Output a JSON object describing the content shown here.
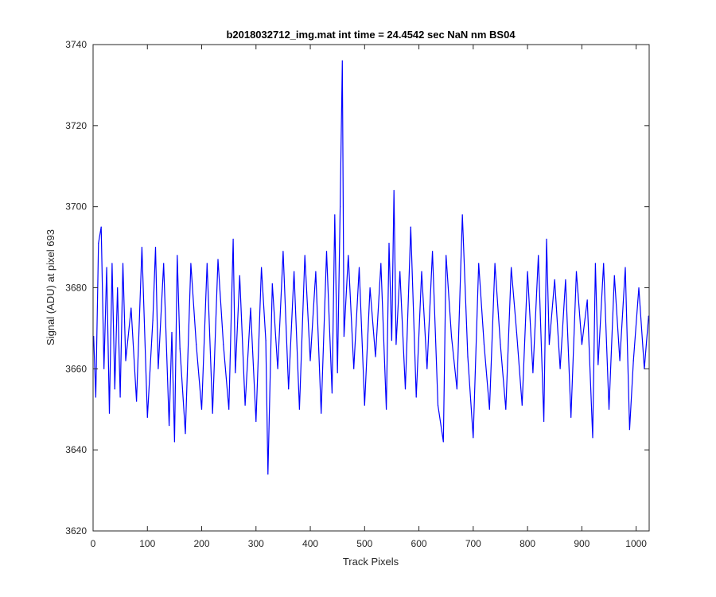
{
  "chart_data": {
    "type": "line",
    "title": "b2018032712_img.mat int time = 24.4542 sec  NaN nm BS04",
    "xlabel": "Track Pixels",
    "ylabel": "Signal (ADU) at pixel 693",
    "xlim": [
      0,
      1024
    ],
    "ylim": [
      3620,
      3740
    ],
    "xticks": [
      0,
      100,
      200,
      300,
      400,
      500,
      600,
      700,
      800,
      900,
      1000
    ],
    "yticks": [
      3620,
      3640,
      3660,
      3680,
      3700,
      3720,
      3740
    ],
    "xtick_labels": [
      "0",
      "100",
      "200",
      "300",
      "400",
      "500",
      "600",
      "700",
      "800",
      "900",
      "1000"
    ],
    "ytick_labels": [
      "3620",
      "3640",
      "3660",
      "3680",
      "3700",
      "3720",
      "3740"
    ],
    "grid": false,
    "series": [
      {
        "color": "#0000ff",
        "x": [
          1,
          5,
          10,
          15,
          20,
          25,
          30,
          35,
          40,
          45,
          50,
          55,
          60,
          70,
          80,
          90,
          100,
          110,
          115,
          120,
          130,
          140,
          145,
          150,
          155,
          160,
          170,
          180,
          190,
          200,
          210,
          220,
          230,
          240,
          250,
          258,
          262,
          270,
          280,
          290,
          300,
          310,
          318,
          322,
          330,
          340,
          350,
          360,
          370,
          380,
          390,
          400,
          410,
          420,
          430,
          440,
          445,
          450,
          455,
          459,
          462,
          470,
          480,
          490,
          500,
          510,
          520,
          530,
          540,
          545,
          550,
          554,
          558,
          565,
          575,
          585,
          595,
          605,
          615,
          625,
          635,
          645,
          650,
          660,
          670,
          680,
          690,
          700,
          710,
          720,
          730,
          740,
          750,
          760,
          770,
          780,
          790,
          800,
          810,
          820,
          830,
          835,
          840,
          850,
          860,
          870,
          880,
          890,
          900,
          910,
          920,
          925,
          930,
          940,
          950,
          960,
          970,
          980,
          988,
          995,
          1005,
          1015,
          1023
        ],
        "y": [
          3668,
          3653,
          3691,
          3695,
          3660,
          3685,
          3649,
          3686,
          3655,
          3680,
          3653,
          3686,
          3662,
          3675,
          3652,
          3690,
          3648,
          3672,
          3690,
          3660,
          3686,
          3646,
          3669,
          3642,
          3688,
          3665,
          3644,
          3686,
          3666,
          3650,
          3686,
          3649,
          3687,
          3666,
          3650,
          3692,
          3659,
          3683,
          3651,
          3675,
          3647,
          3685,
          3667,
          3634,
          3681,
          3660,
          3689,
          3655,
          3684,
          3650,
          3688,
          3662,
          3684,
          3649,
          3689,
          3654,
          3698,
          3659,
          3700,
          3736,
          3668,
          3688,
          3660,
          3685,
          3651,
          3680,
          3663,
          3686,
          3650,
          3691,
          3667,
          3704,
          3666,
          3684,
          3655,
          3695,
          3653,
          3684,
          3660,
          3689,
          3651,
          3642,
          3688,
          3668,
          3655,
          3698,
          3663,
          3643,
          3686,
          3666,
          3650,
          3686,
          3666,
          3650,
          3685,
          3669,
          3651,
          3684,
          3659,
          3688,
          3647,
          3692,
          3666,
          3682,
          3660,
          3682,
          3648,
          3684,
          3666,
          3677,
          3643,
          3686,
          3661,
          3686,
          3650,
          3683,
          3662,
          3685,
          3645,
          3662,
          3680,
          3660,
          3673
        ]
      }
    ]
  }
}
